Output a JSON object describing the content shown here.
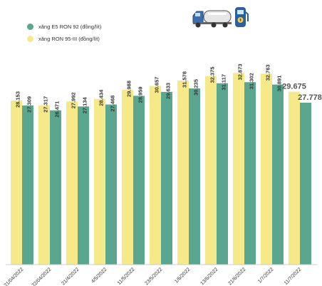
{
  "chart_data": {
    "type": "bar",
    "categories": [
      "21/04/2022",
      "22/04/2022",
      "21/4/2022",
      "4/5/2022",
      "11/5/2022",
      "23/5/2022",
      "1/6/2022",
      "13/6/2022",
      "21/6/2022",
      "1/7/2022",
      "11/7/2022"
    ],
    "series": [
      {
        "name": "xăng RON 95-III (đồng/lít)",
        "color": "#f5e98a",
        "values": [
          28.153,
          27.317,
          27.992,
          28.434,
          29.988,
          30.657,
          31.578,
          32.375,
          32.873,
          32.763,
          29.675
        ],
        "labels": [
          "28.153",
          "27.317",
          "27.992",
          "28.434",
          "29.988",
          "30.657",
          "31.578",
          "32.375",
          "32.873",
          "32.763",
          "29.675"
        ]
      },
      {
        "name": "xăng E5 RON 92 (đồng/lít)",
        "color": "#5ba68f",
        "values": [
          27.309,
          26.471,
          27.134,
          27.468,
          28.959,
          29.633,
          30.235,
          31.117,
          31.302,
          30.891,
          27.778
        ],
        "labels": [
          "27.309",
          "26.471",
          "27.134",
          "27.468",
          "28.959",
          "29.633",
          "30.235",
          "31.117",
          "31.302",
          "30.891",
          "27.778"
        ]
      }
    ],
    "ylim": [
      0,
      35
    ],
    "highlight_last": true
  },
  "legend": {
    "e5": {
      "label": "xăng E5 RON 92 (đồng/lít)",
      "color": "#5ba68f"
    },
    "ron95": {
      "label": "xăng RON 95-III (đồng/lít)",
      "color": "#f5e98a"
    }
  },
  "icons": [
    "fuel-truck-icon",
    "fuel-pump-icon"
  ]
}
